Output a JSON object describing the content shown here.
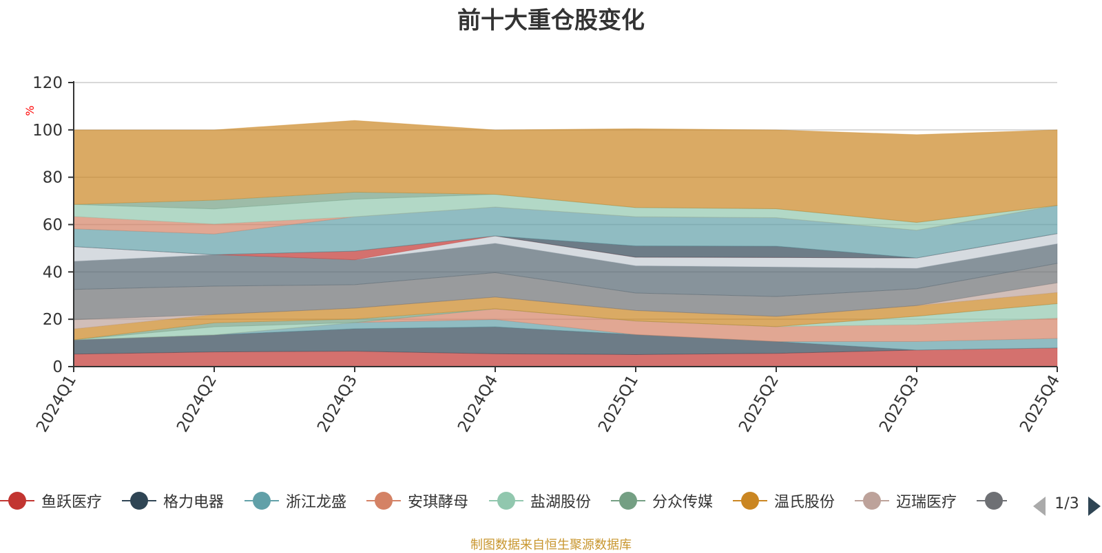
{
  "title": "前十大重仓股变化",
  "footer": "制图数据来自恒生聚源数据库",
  "legend_pager": "1/3",
  "legend_visible": [
    "鱼跃医疗",
    "格力电器",
    "浙江龙盛",
    "安琪酵母",
    "盐湖股份",
    "分众传媒",
    "温氏股份",
    "迈瑞医疗"
  ],
  "chart_data": {
    "type": "area",
    "stacked": true,
    "ylabel": "%",
    "ylim": [
      0,
      120
    ],
    "yticks": [
      0,
      20,
      40,
      60,
      80,
      100,
      120
    ],
    "grid": true,
    "legend_position": "bottom",
    "categories": [
      "2024Q1",
      "2024Q2",
      "2024Q3",
      "2024Q4",
      "2025Q1",
      "2025Q2",
      "2025Q3",
      "2025Q4"
    ],
    "series": [
      {
        "name": "鱼跃医疗",
        "color": "#c23531",
        "values": [
          5.3,
          6.2,
          6.5,
          5.4,
          5.1,
          5.6,
          7.0,
          7.9
        ]
      },
      {
        "name": "格力电器",
        "color": "#2f4554",
        "values": [
          6.0,
          7.2,
          9.5,
          11.4,
          8.4,
          5.0,
          0.0,
          0.0
        ]
      },
      {
        "name": "浙江龙盛",
        "color": "#61a0a8",
        "values": [
          0.0,
          0.0,
          2.6,
          3.1,
          0.0,
          0.0,
          3.6,
          4.0
        ]
      },
      {
        "name": "安琪酵母",
        "color": "#d48265",
        "values": [
          0.0,
          0.0,
          0.0,
          4.5,
          5.8,
          6.3,
          7.1,
          8.6
        ]
      },
      {
        "name": "盐湖股份",
        "color": "#91c7ae",
        "values": [
          0.0,
          3.4,
          0.0,
          0.0,
          0.0,
          0.0,
          3.6,
          6.1
        ]
      },
      {
        "name": "分众传媒",
        "color": "#749f83",
        "values": [
          0.0,
          1.7,
          1.5,
          0.0,
          0.0,
          0.0,
          0.0,
          0.0
        ]
      },
      {
        "name": "温氏股份",
        "color": "#ca8622",
        "values": [
          4.6,
          3.5,
          4.6,
          5.0,
          4.4,
          4.3,
          4.5,
          4.7
        ]
      },
      {
        "name": "迈瑞医疗",
        "color": "#bda29a",
        "values": [
          3.9,
          0.0,
          0.0,
          0.0,
          0.0,
          0.0,
          0.0,
          4.1
        ]
      },
      {
        "color": "#6e7074",
        "values": [
          12.8,
          12.0,
          9.9,
          10.3,
          7.4,
          8.4,
          7.1,
          8.2
        ]
      },
      {
        "color": "#546570",
        "values": [
          11.9,
          13.3,
          10.5,
          12.4,
          11.5,
          12.5,
          8.6,
          8.3
        ]
      },
      {
        "color": "#c4ccd3",
        "values": [
          6.2,
          0.0,
          0.0,
          3.1,
          3.6,
          4.0,
          4.4,
          4.3
        ]
      },
      {
        "color": "#c23531",
        "values": [
          0.0,
          0.0,
          3.7,
          0.0,
          0.0,
          0.0,
          0.0,
          0.0
        ]
      },
      {
        "color": "#2f4554",
        "values": [
          0.0,
          0.0,
          0.0,
          0.0,
          4.8,
          4.8,
          0.0,
          0.0
        ]
      },
      {
        "color": "#61a0a8",
        "values": [
          7.5,
          8.7,
          14.5,
          12.2,
          12.3,
          12.0,
          11.7,
          11.9
        ]
      },
      {
        "color": "#d48265",
        "values": [
          5.2,
          4.2,
          0.0,
          0.0,
          0.0,
          0.0,
          0.0,
          0.0
        ]
      },
      {
        "color": "#91c7ae",
        "values": [
          5.1,
          6.4,
          7.4,
          5.4,
          3.9,
          3.8,
          3.3,
          0.0
        ]
      },
      {
        "color": "#749f83",
        "values": [
          0.0,
          3.7,
          3.0,
          0.0,
          0.0,
          0.0,
          0.0,
          0.0
        ]
      },
      {
        "color": "#ca8622",
        "values": [
          31.5,
          29.7,
          30.3,
          27.2,
          33.3,
          33.3,
          37.1,
          31.9
        ]
      }
    ]
  }
}
